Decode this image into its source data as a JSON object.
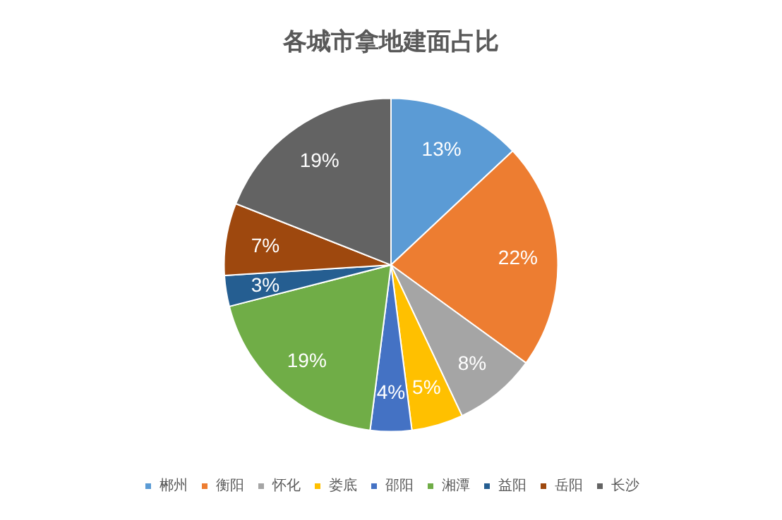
{
  "chart_data": {
    "type": "pie",
    "title": "各城市拿地建面占比",
    "categories": [
      "郴州",
      "衡阳",
      "怀化",
      "娄底",
      "邵阳",
      "湘潭",
      "益阳",
      "岳阳",
      "长沙"
    ],
    "values": [
      13,
      22,
      8,
      5,
      4,
      19,
      3,
      7,
      19
    ],
    "value_labels": [
      "13%",
      "22%",
      "8%",
      "5%",
      "4%",
      "19%",
      "3%",
      "7%",
      "19%"
    ],
    "colors": [
      "#5b9bd5",
      "#ed7d31",
      "#a5a5a5",
      "#ffc000",
      "#4472c4",
      "#70ad47",
      "#255e91",
      "#9e480e",
      "#636363"
    ],
    "legend": "bottom"
  }
}
